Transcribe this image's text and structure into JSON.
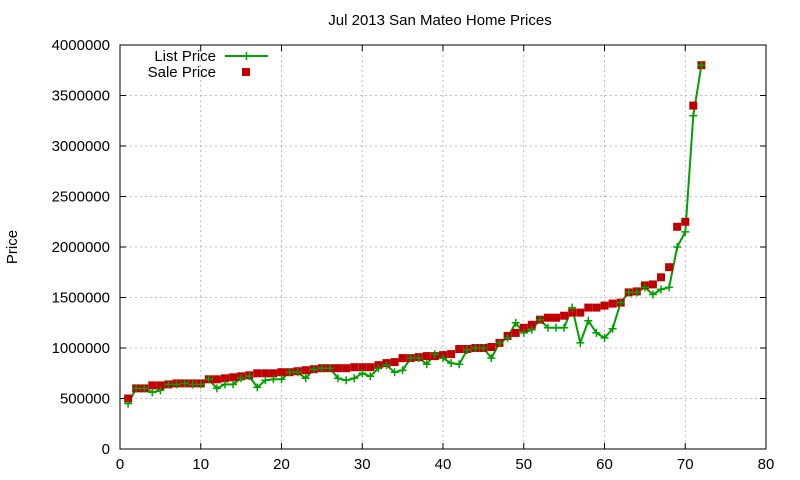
{
  "chart_data": {
    "type": "line",
    "title": "Jul 2013 San Mateo Home Prices",
    "ylabel": "Price",
    "xlabel": "",
    "xlim": [
      0,
      80
    ],
    "ylim": [
      0,
      4000000
    ],
    "x_ticks": [
      0,
      10,
      20,
      30,
      40,
      50,
      60,
      70,
      80
    ],
    "y_ticks": [
      0,
      500000,
      1000000,
      1500000,
      2000000,
      2500000,
      3000000,
      3500000,
      4000000
    ],
    "grid": true,
    "legend_position": "top-left",
    "series": [
      {
        "name": "List Price",
        "style": "line-with-plus",
        "color": "#00a000",
        "x": [
          1,
          2,
          3,
          4,
          5,
          6,
          7,
          8,
          9,
          10,
          11,
          12,
          13,
          14,
          15,
          16,
          17,
          18,
          19,
          20,
          21,
          22,
          23,
          24,
          25,
          26,
          27,
          28,
          29,
          30,
          31,
          32,
          33,
          34,
          35,
          36,
          37,
          38,
          39,
          40,
          41,
          42,
          43,
          44,
          45,
          46,
          47,
          48,
          49,
          50,
          51,
          52,
          53,
          54,
          55,
          56,
          57,
          58,
          59,
          60,
          61,
          62,
          63,
          64,
          65,
          66,
          67,
          68,
          69,
          70,
          71,
          72
        ],
        "values": [
          450000,
          600000,
          600000,
          560000,
          580000,
          640000,
          640000,
          650000,
          640000,
          640000,
          690000,
          600000,
          640000,
          640000,
          700000,
          720000,
          610000,
          680000,
          690000,
          690000,
          760000,
          760000,
          700000,
          790000,
          800000,
          800000,
          700000,
          680000,
          700000,
          750000,
          720000,
          800000,
          830000,
          760000,
          780000,
          900000,
          900000,
          840000,
          940000,
          900000,
          850000,
          840000,
          980000,
          1000000,
          1000000,
          900000,
          1050000,
          1100000,
          1250000,
          1150000,
          1180000,
          1280000,
          1200000,
          1200000,
          1200000,
          1400000,
          1050000,
          1270000,
          1150000,
          1100000,
          1190000,
          1450000,
          1550000,
          1550000,
          1600000,
          1530000,
          1580000,
          1600000,
          2000000,
          2150000,
          3300000,
          3800000
        ]
      },
      {
        "name": "Sale Price",
        "style": "square-points",
        "color": "#c00000",
        "x": [
          1,
          2,
          3,
          4,
          5,
          6,
          7,
          8,
          9,
          10,
          11,
          12,
          13,
          14,
          15,
          16,
          17,
          18,
          19,
          20,
          21,
          22,
          23,
          24,
          25,
          26,
          27,
          28,
          29,
          30,
          31,
          32,
          33,
          34,
          35,
          36,
          37,
          38,
          39,
          40,
          41,
          42,
          43,
          44,
          45,
          46,
          47,
          48,
          49,
          50,
          51,
          52,
          53,
          54,
          55,
          56,
          57,
          58,
          59,
          60,
          61,
          62,
          63,
          64,
          65,
          66,
          67,
          68,
          69,
          70,
          71,
          72
        ],
        "values": [
          500000,
          600000,
          600000,
          630000,
          630000,
          640000,
          650000,
          650000,
          650000,
          650000,
          690000,
          690000,
          700000,
          710000,
          720000,
          730000,
          750000,
          750000,
          750000,
          760000,
          760000,
          770000,
          780000,
          790000,
          800000,
          800000,
          800000,
          800000,
          810000,
          810000,
          810000,
          830000,
          850000,
          860000,
          900000,
          900000,
          910000,
          920000,
          920000,
          930000,
          940000,
          990000,
          990000,
          1000000,
          1000000,
          1010000,
          1050000,
          1120000,
          1150000,
          1200000,
          1230000,
          1280000,
          1300000,
          1300000,
          1320000,
          1350000,
          1350000,
          1400000,
          1400000,
          1420000,
          1440000,
          1450000,
          1550000,
          1560000,
          1620000,
          1630000,
          1700000,
          1800000,
          2200000,
          2250000,
          3400000,
          3800000
        ]
      }
    ]
  }
}
